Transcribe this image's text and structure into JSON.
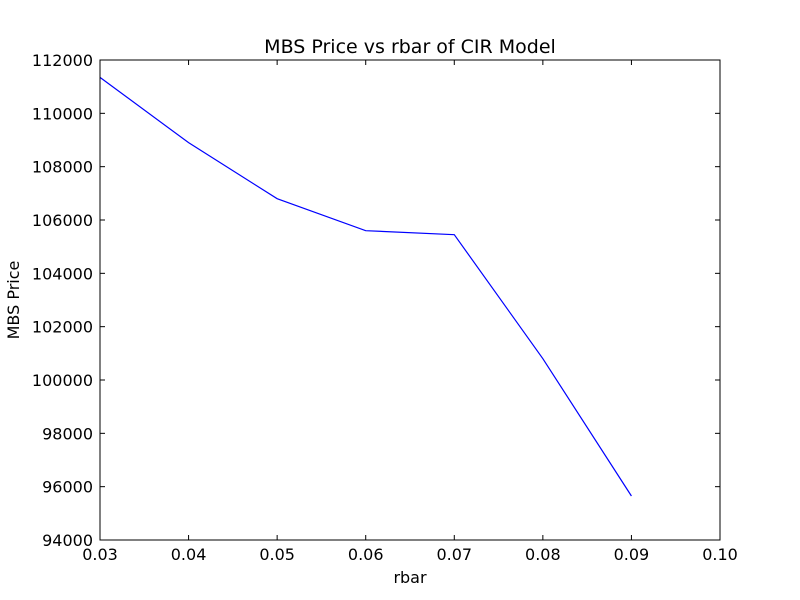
{
  "chart_data": {
    "type": "line",
    "title": "MBS Price vs rbar of CIR Model",
    "xlabel": "rbar",
    "ylabel": "MBS Price",
    "xlim": [
      0.03,
      0.1
    ],
    "ylim": [
      94000,
      112000
    ],
    "xticks": [
      "0.03",
      "0.04",
      "0.05",
      "0.06",
      "0.07",
      "0.08",
      "0.09",
      "0.10"
    ],
    "yticks": [
      "94000",
      "96000",
      "98000",
      "100000",
      "102000",
      "104000",
      "106000",
      "108000",
      "110000",
      "112000"
    ],
    "grid": false,
    "series": [
      {
        "color": "#0000ff",
        "x": [
          0.03,
          0.04,
          0.05,
          0.06,
          0.07,
          0.08,
          0.09
        ],
        "y": [
          111350,
          108900,
          106800,
          105600,
          105450,
          100800,
          95650
        ]
      }
    ]
  }
}
